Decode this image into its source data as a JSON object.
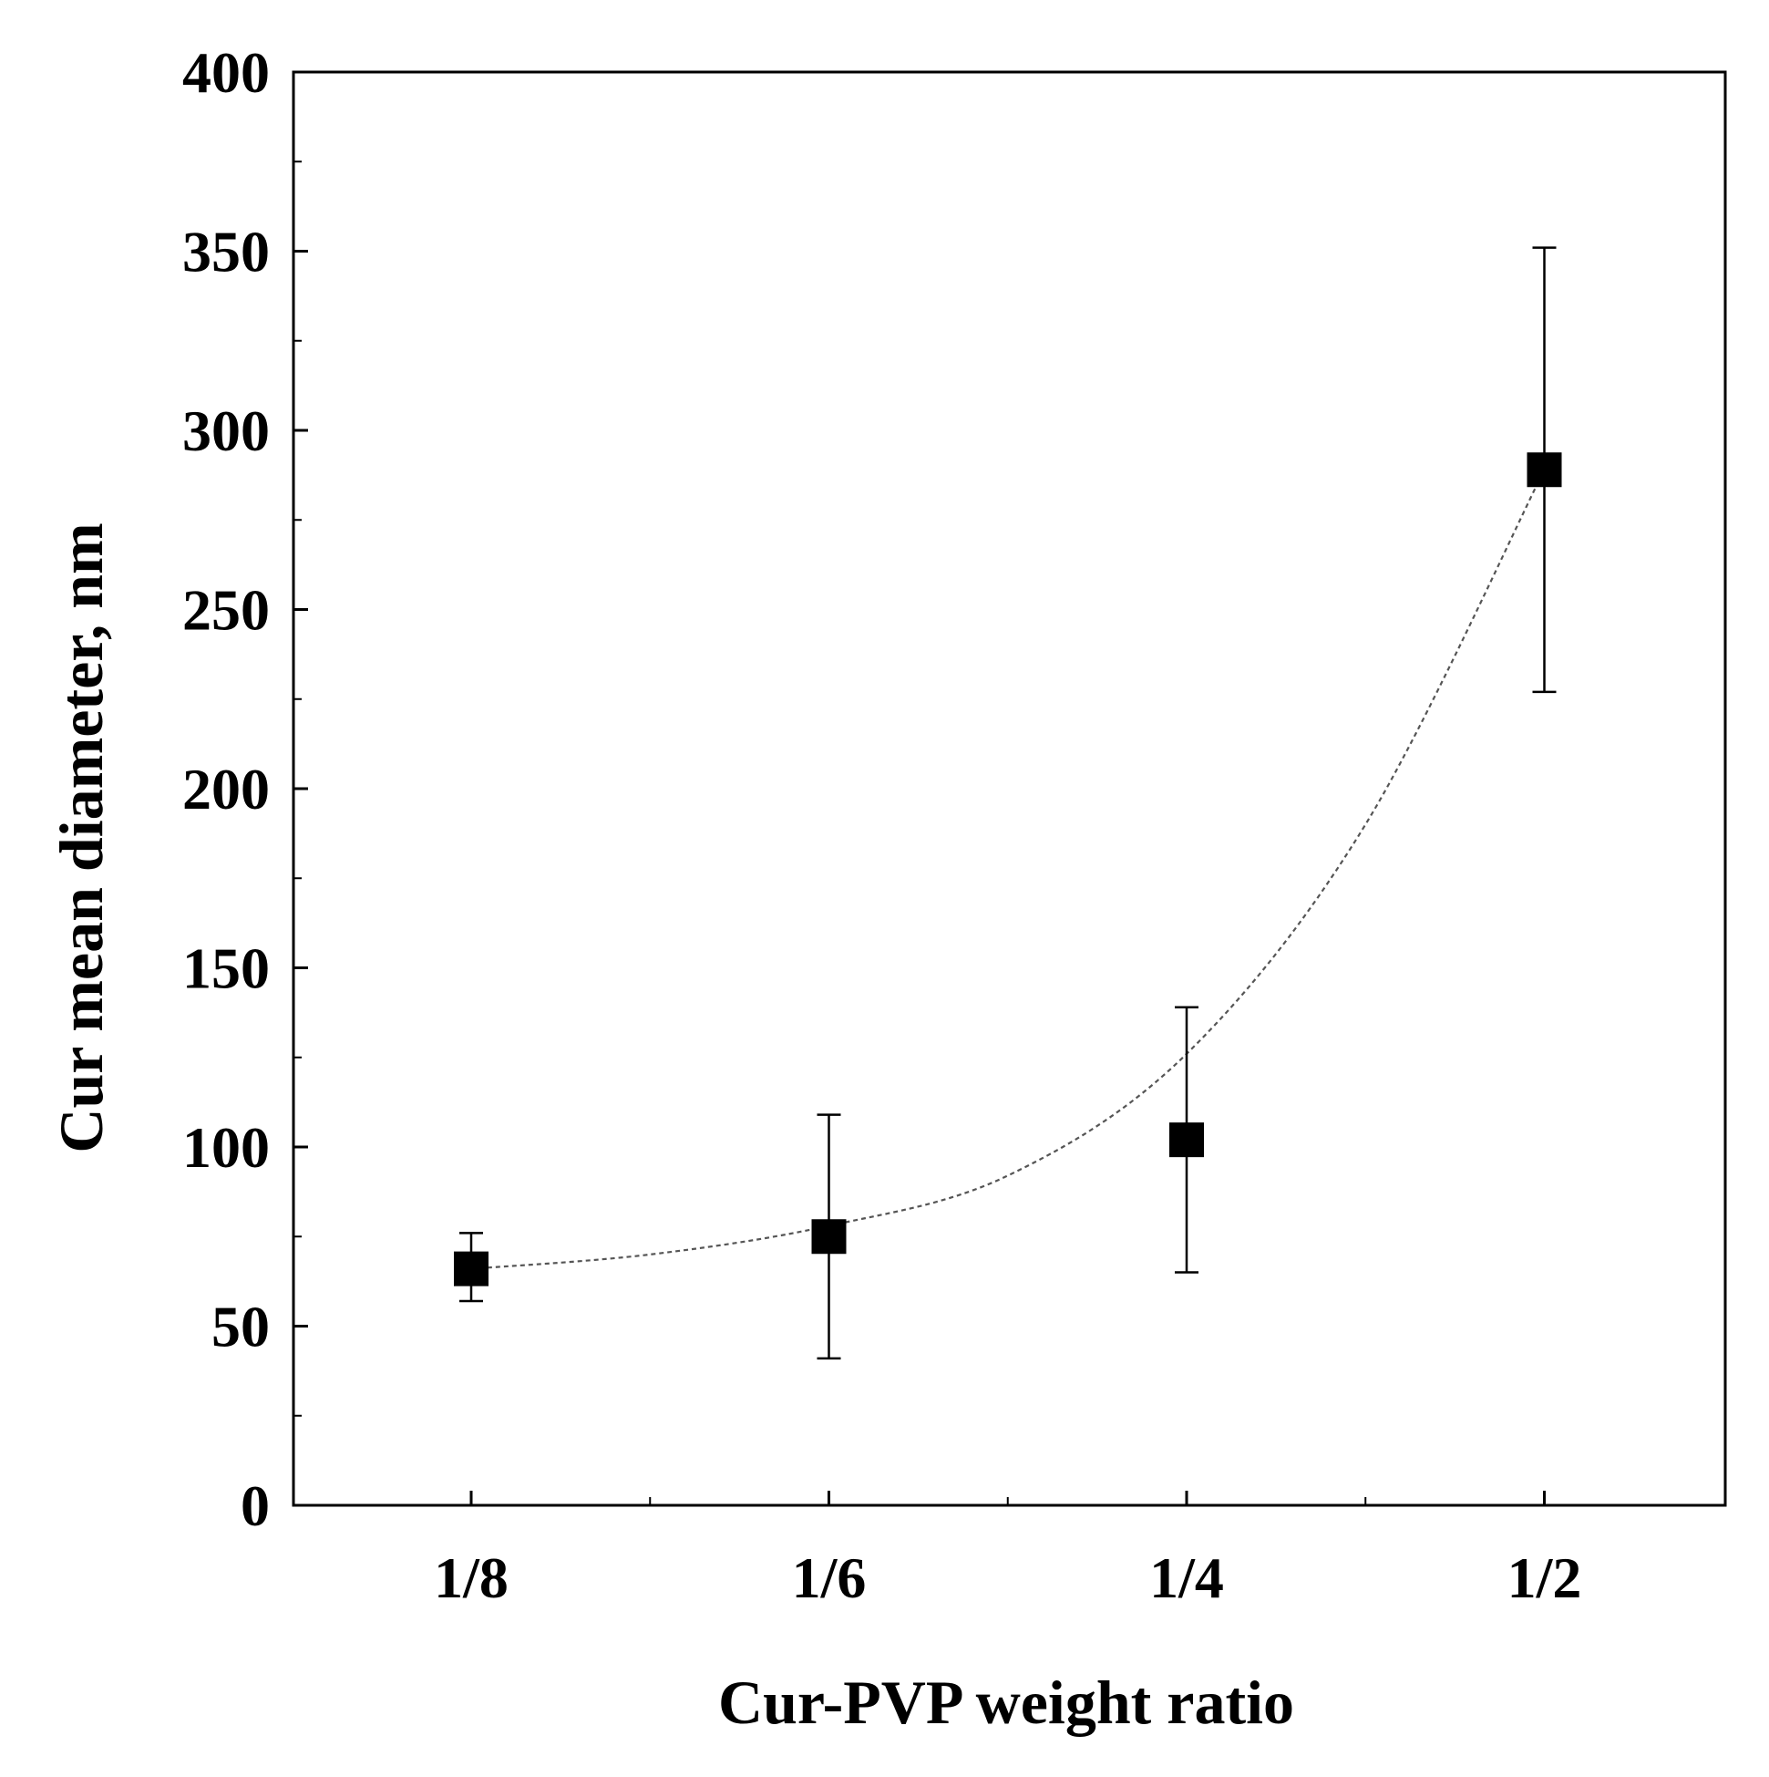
{
  "chart_data": {
    "type": "scatter",
    "title": "",
    "xlabel": "Cur-PVP weight ratio",
    "ylabel": "Cur mean diameter, nm",
    "categories": [
      "1/8",
      "1/6",
      "1/4",
      "1/2"
    ],
    "series": [
      {
        "name": "Cur mean diameter",
        "marker": "square",
        "values": [
          66,
          75,
          102,
          289
        ],
        "error_low": [
          57,
          41,
          65,
          227
        ],
        "error_high": [
          76,
          109,
          139,
          351
        ]
      }
    ],
    "fit_curve": {
      "style": "dotted",
      "description": "exponential trend line",
      "points": [
        [
          0,
          66
        ],
        [
          0.5,
          70
        ],
        [
          1,
          78
        ],
        [
          1.5,
          92
        ],
        [
          2,
          126
        ],
        [
          2.5,
          190
        ],
        [
          3,
          289
        ]
      ]
    },
    "yticks": [
      0,
      50,
      100,
      150,
      200,
      250,
      300,
      350,
      400
    ],
    "ylim": [
      0,
      400
    ],
    "grid": false,
    "legend": "none",
    "colors": {
      "marker": "#000000",
      "axis": "#000000",
      "fit": "#555555",
      "background": "#ffffff"
    }
  }
}
